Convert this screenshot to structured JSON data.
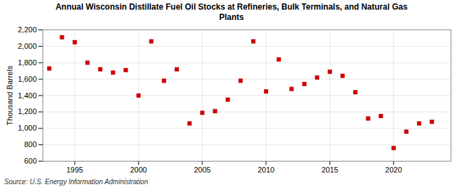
{
  "chart_data": {
    "type": "scatter",
    "title": "Annual Wisconsin Distillate Fuel Oil Stocks at Refineries, Bulk Terminals, and Natural Gas\nPlants",
    "ylabel": "Thousand Barrels",
    "annotations": [
      "Source: U.S. Energy Information Administration"
    ],
    "x": [
      1993,
      1994,
      1995,
      1996,
      1997,
      1998,
      1999,
      2000,
      2001,
      2002,
      2003,
      2004,
      2005,
      2006,
      2007,
      2008,
      2009,
      2010,
      2011,
      2012,
      2013,
      2014,
      2015,
      2016,
      2017,
      2018,
      2019,
      2020,
      2021,
      2022,
      2023
    ],
    "values": [
      1730,
      2110,
      2050,
      1800,
      1720,
      1680,
      1710,
      1400,
      2060,
      1580,
      1720,
      1060,
      1190,
      1210,
      1350,
      1580,
      2060,
      1450,
      1840,
      1480,
      1540,
      1620,
      1690,
      1640,
      1440,
      1120,
      1150,
      760,
      960,
      1060,
      1080
    ],
    "color": "#cc0000",
    "marker": "square",
    "xlim": [
      1992.5,
      2024.5
    ],
    "xticks": [
      1995,
      2000,
      2005,
      2010,
      2015,
      2020
    ],
    "ylim": [
      600,
      2200
    ],
    "yticks": [
      600,
      800,
      {
        "value": 1000,
        "label": "1,000"
      },
      {
        "value": 1200,
        "label": "1,200"
      },
      {
        "value": 1400,
        "label": "1,400"
      },
      {
        "value": 1600,
        "label": "1,600"
      },
      {
        "value": 1800,
        "label": "1,800"
      },
      {
        "value": 2000,
        "label": "2,000"
      },
      {
        "value": 2200,
        "label": "2,200"
      }
    ],
    "grid": true
  }
}
